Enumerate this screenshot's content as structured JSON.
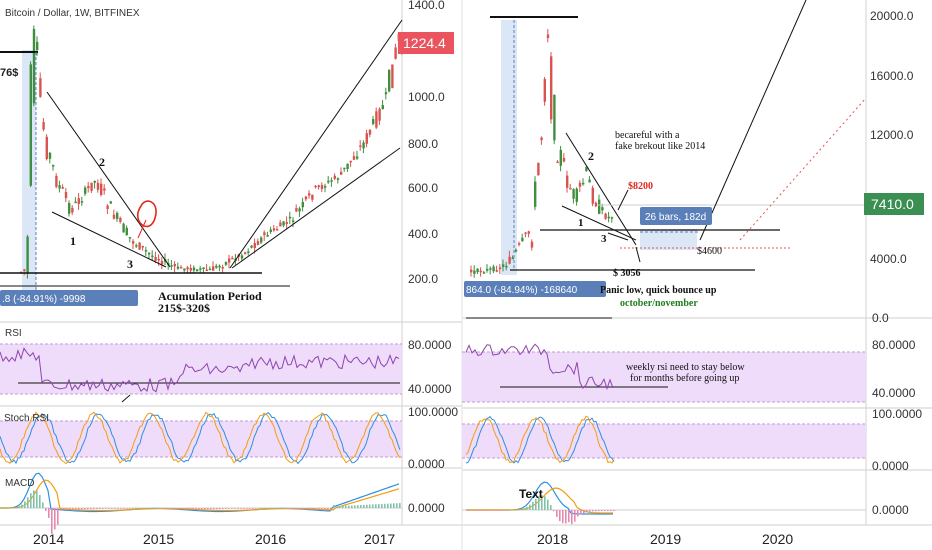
{
  "left_chart": {
    "symbol": "Bitcoin / Dollar, 1W, BITFINEX",
    "y_labels": [
      "1400.0",
      "1000.0",
      "800.0",
      "600.0",
      "400.0",
      "200.0"
    ],
    "price_badge": "1224.4",
    "top_level_label": "76$",
    "range_badge": ".8 (-84.91%) -9998",
    "wave_labels": [
      "1",
      "2",
      "3"
    ],
    "accumulation_title": "Acumulation Period",
    "accumulation_range": "215$-320$"
  },
  "right_chart": {
    "y_labels": [
      "20000.0",
      "16000.0",
      "12000.0",
      "4000.0",
      "0.0"
    ],
    "price_badge": "7410.0",
    "range_badge": "864.0 (-84.94%) -168640",
    "wave_labels": [
      "2",
      "1",
      "3"
    ],
    "note_fake_breakout_1": "becareful with a",
    "note_fake_breakout_2": "fake brekout like 2014",
    "level_8200": "$8200",
    "bars_badge": "26 bars, 182d",
    "level_4600": "$4600",
    "level_3056": "$ 3056",
    "panic_note": "Panic low, quick bounce up",
    "timing_note": "october/november"
  },
  "rsi_panel": {
    "title": "RSI",
    "y_labels": [
      "80.0000",
      "40.0000"
    ],
    "note_1": "weekly rsi need to stay below",
    "note_2": "for months before going up"
  },
  "stoch_panel": {
    "title": "Stoch RSI",
    "y_labels": [
      "100.0000",
      "0.0000"
    ]
  },
  "macd_panel": {
    "title": "MACD",
    "y_labels": [
      "0.0000"
    ],
    "text_note": "Text"
  },
  "x_axis": {
    "left_years": [
      "2014",
      "2015",
      "2016",
      "2017"
    ],
    "right_years": [
      "2018",
      "2019",
      "2020"
    ]
  },
  "colors": {
    "up_candle": "#3f8f3f",
    "down_candle": "#d9534f",
    "rsi_line": "#8e44ad",
    "rsi_band": "#eedcfa",
    "badge_red": "#e9545e",
    "badge_green": "#3b8f52",
    "badge_blue": "#5b7fb8",
    "macd_line": "#2f8fe0",
    "signal_line": "#f39c12",
    "green_text": "#1e7d1e",
    "red_text": "#e0281e"
  }
}
